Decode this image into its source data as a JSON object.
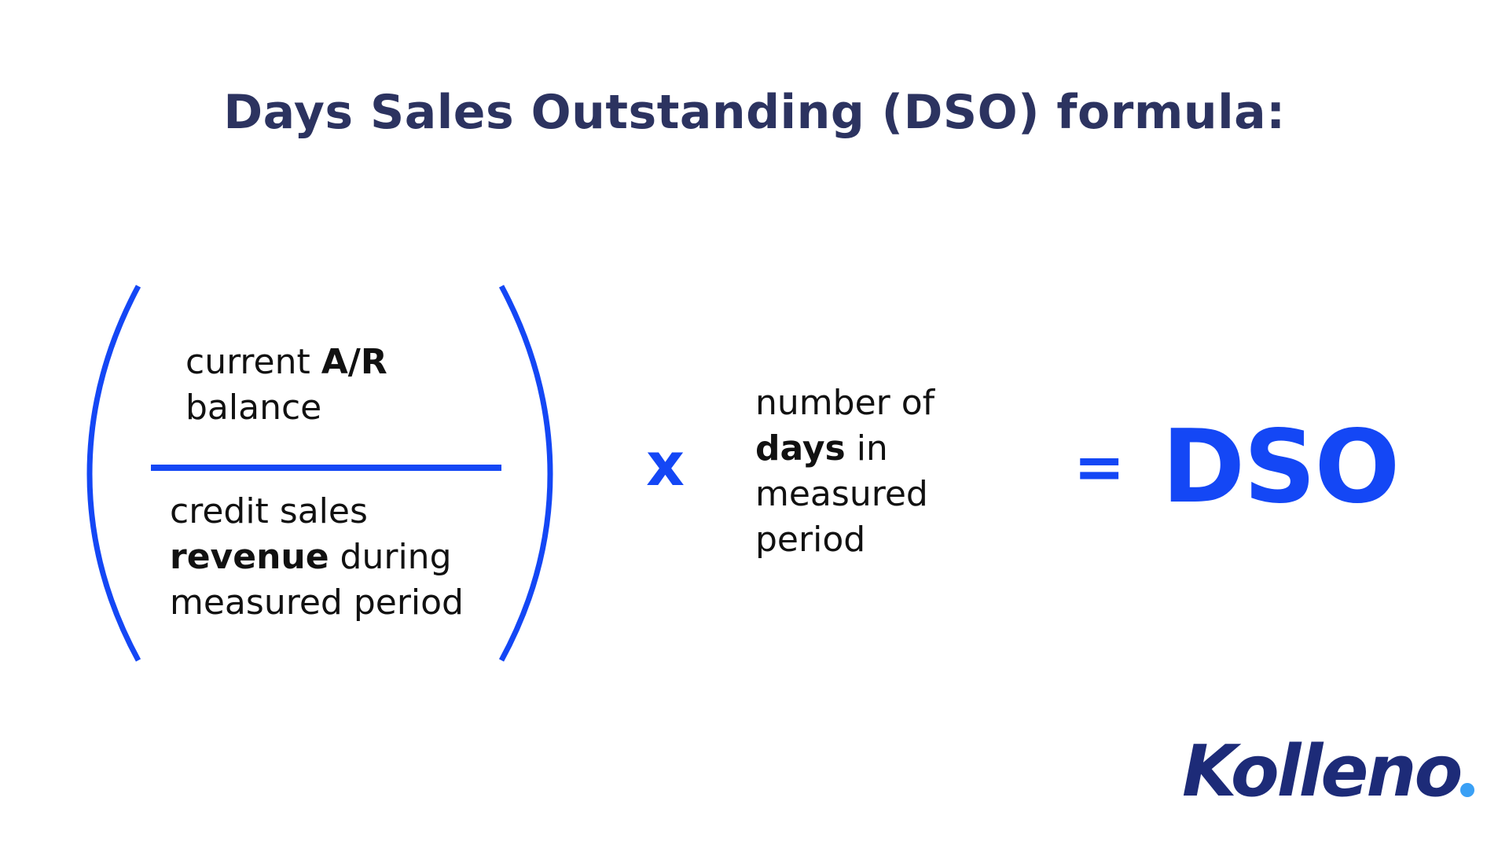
{
  "title": "Days Sales Outstanding (DSO) formula:",
  "numerator": {
    "plain": "current ",
    "bold": "A/R",
    "line2": "balance"
  },
  "denominator": {
    "line1": "credit sales",
    "bold": "revenue",
    "line2_rest": " during",
    "line3": "measured period"
  },
  "operator_multiply": "x",
  "multiplier": {
    "line1": "number of",
    "bold": "days",
    "line2_rest": " in",
    "line3": "measured",
    "line4": "period"
  },
  "operator_equals": "=",
  "result": "DSO",
  "logo": {
    "text": "Kolleno",
    "text_color": "#1d2b78",
    "dot_color": "#3aa0f5"
  },
  "colors": {
    "accent": "#1447f5",
    "title": "#2c3360"
  }
}
